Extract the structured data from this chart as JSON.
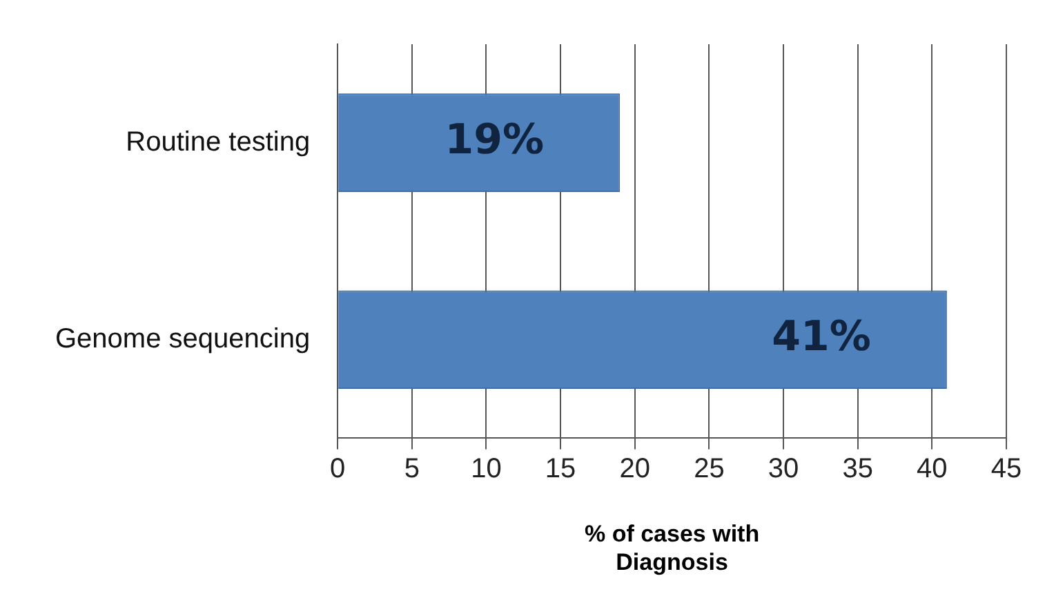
{
  "chart_data": {
    "type": "bar",
    "orientation": "horizontal",
    "categories": [
      "Routine testing",
      "Genome sequencing"
    ],
    "values": [
      19,
      41
    ],
    "color": "#4f81bd",
    "value_labels": [
      "19%",
      "41%"
    ],
    "xlabel": "% of cases with Diagnosis",
    "xlim": [
      0,
      45
    ],
    "xticks": [
      0,
      5,
      10,
      15,
      20,
      25,
      30,
      35,
      40,
      45
    ],
    "grid": "x",
    "legend": false
  }
}
